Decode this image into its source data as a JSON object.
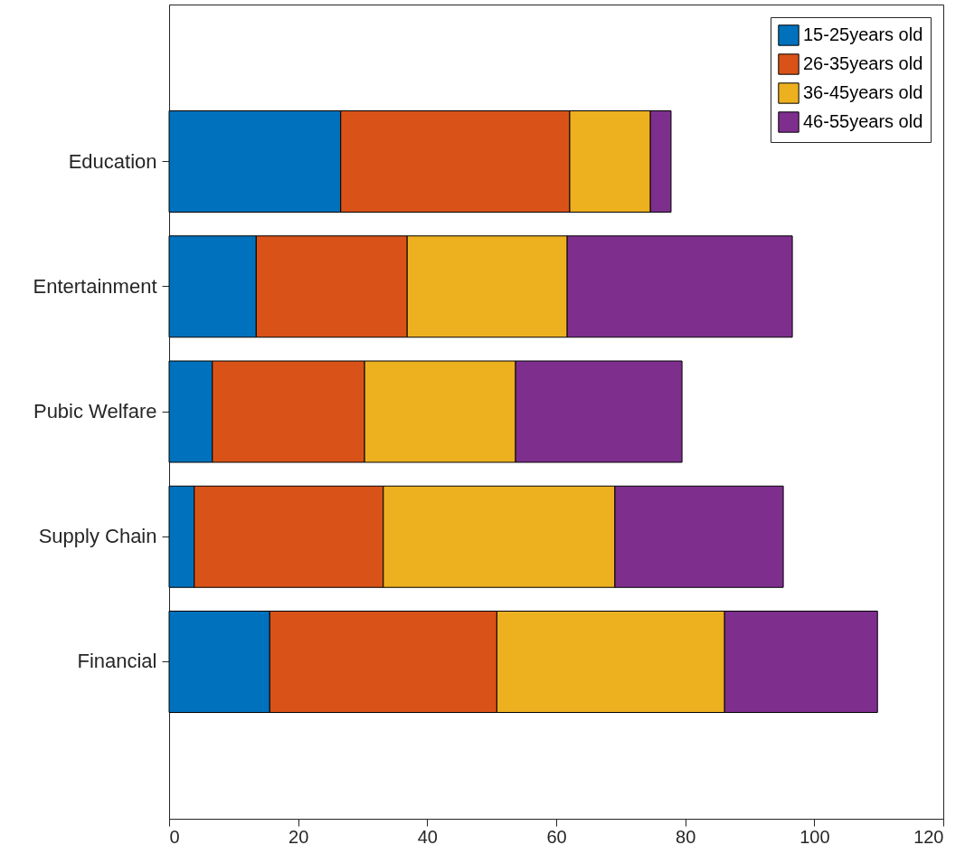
{
  "chart_data": {
    "type": "bar",
    "orientation": "horizontal",
    "stacked": true,
    "categories": [
      "Education",
      "Entertainment",
      "Pubic Welfare",
      "Supply Chain",
      "Financial"
    ],
    "series": [
      {
        "name": "15-25years old",
        "color": "#0072bd",
        "values": [
          26.6,
          13.5,
          6.7,
          3.9,
          15.6
        ]
      },
      {
        "name": "26-35years old",
        "color": "#d95319",
        "values": [
          35.5,
          23.4,
          23.6,
          29.3,
          35.2
        ]
      },
      {
        "name": "36-45years old",
        "color": "#edb120",
        "values": [
          12.5,
          24.8,
          23.4,
          35.9,
          35.3
        ]
      },
      {
        "name": "46-55years old",
        "color": "#7e2f8e",
        "values": [
          3.2,
          34.9,
          25.8,
          26.1,
          23.7
        ]
      }
    ],
    "xlim": [
      0,
      120
    ],
    "xticks": [
      0,
      20,
      40,
      60,
      80,
      100,
      120
    ],
    "grid": false,
    "legend": "top right"
  }
}
